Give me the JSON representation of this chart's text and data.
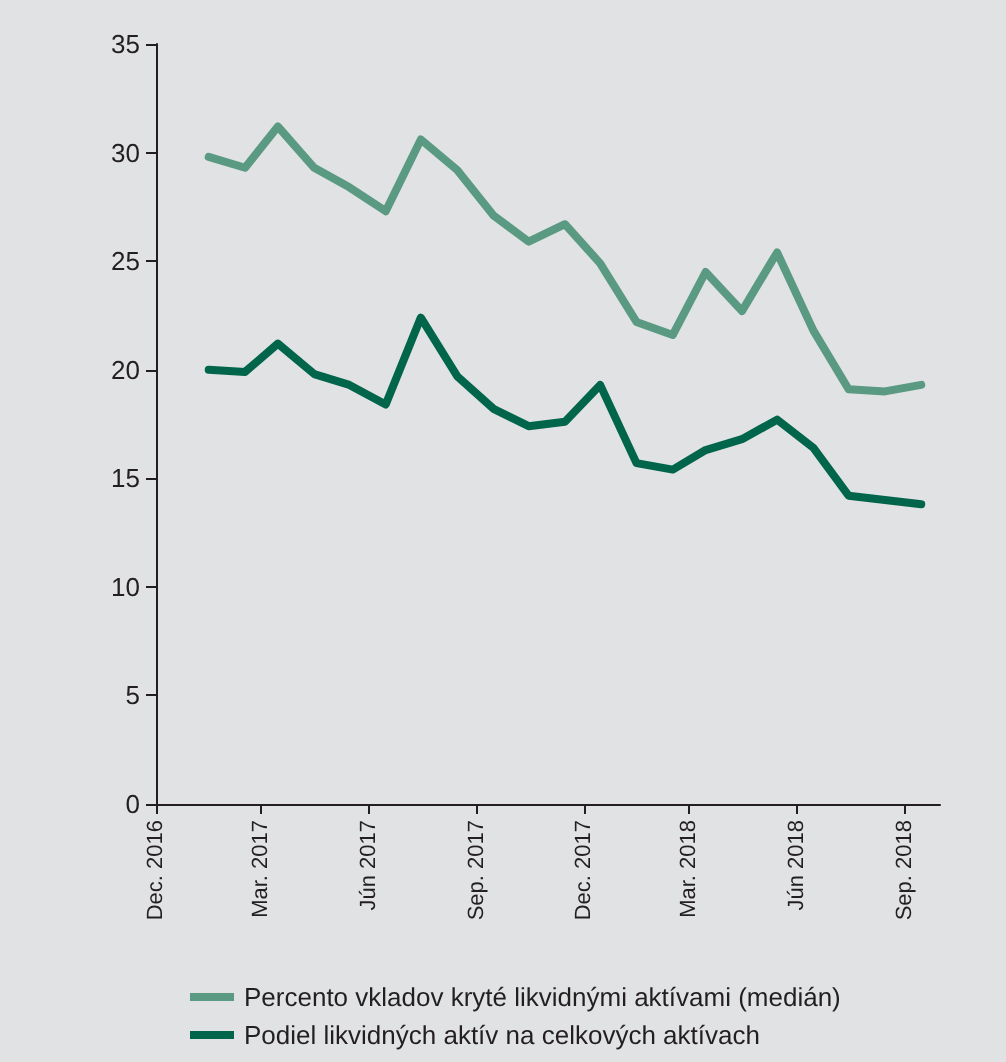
{
  "chart_data": {
    "type": "line",
    "x": [
      "2017-01-15",
      "2017-02-15",
      "2017-03-15",
      "2017-04-15",
      "2017-05-15",
      "2017-06-15",
      "2017-07-15",
      "2017-08-15",
      "2017-09-15",
      "2017-10-15",
      "2017-11-15",
      "2017-12-15",
      "2018-01-15",
      "2018-02-15",
      "2018-03-15",
      "2018-04-15",
      "2018-05-15",
      "2018-06-15",
      "2018-07-15",
      "2018-08-15",
      "2018-09-15"
    ],
    "series": [
      {
        "name": "Percento vkladov kryté likvidnými aktívami (medián)",
        "color": "#5a9a82",
        "values": [
          29.8,
          29.3,
          31.2,
          29.3,
          28.4,
          27.3,
          30.6,
          29.2,
          27.1,
          25.9,
          26.7,
          24.9,
          22.2,
          21.6,
          24.5,
          22.7,
          25.4,
          21.8,
          19.1,
          19.0,
          19.3
        ]
      },
      {
        "name": "Podiel likvidných aktív na celkových aktívach",
        "color": "#00654a",
        "values": [
          20.0,
          19.9,
          21.2,
          19.8,
          19.3,
          18.4,
          22.4,
          19.7,
          18.2,
          17.4,
          17.6,
          19.3,
          15.7,
          15.4,
          16.3,
          16.8,
          17.7,
          16.4,
          14.2,
          14.0,
          13.8
        ]
      }
    ],
    "xlim": [
      "2016-12-01",
      "2018-10-01"
    ],
    "xticks": [
      {
        "value": "2016-12-01",
        "label": "Dec. 2016"
      },
      {
        "value": "2017-03-01",
        "label": "Mar. 2017"
      },
      {
        "value": "2017-06-01",
        "label": "Jún 2017"
      },
      {
        "value": "2017-09-01",
        "label": "Sep. 2017"
      },
      {
        "value": "2017-12-01",
        "label": "Dec. 2017"
      },
      {
        "value": "2018-03-01",
        "label": "Mar. 2018"
      },
      {
        "value": "2018-06-01",
        "label": "Jún 2018"
      },
      {
        "value": "2018-09-01",
        "label": "Sep. 2018"
      }
    ],
    "ylim": [
      0,
      35
    ],
    "yticks": [
      0,
      5,
      10,
      15,
      20,
      25,
      30,
      35
    ],
    "grid": false,
    "legend": "bottom",
    "marker": "none",
    "line_style": "solid"
  }
}
